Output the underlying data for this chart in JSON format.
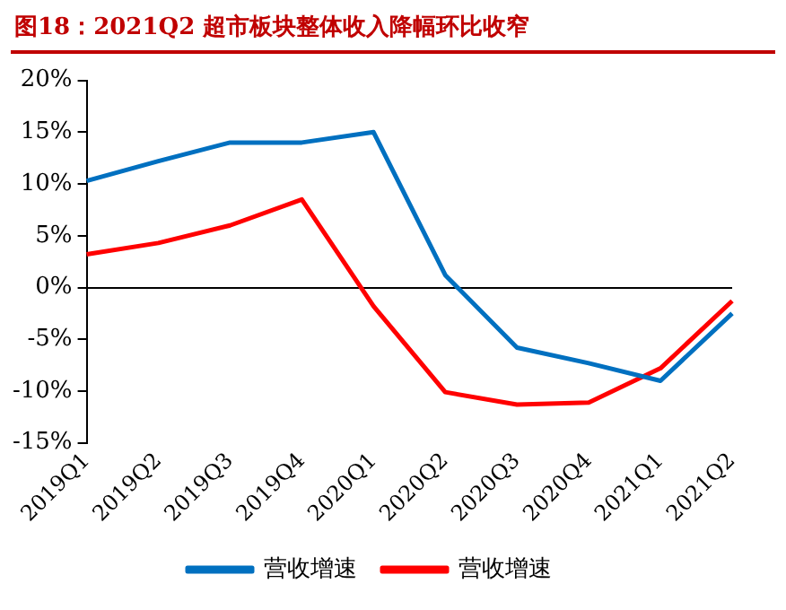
{
  "chart_data": {
    "type": "line",
    "title": "图18：2021Q2 超市板块整体收入降幅环比收窄",
    "categories": [
      "2019Q1",
      "2019Q2",
      "2019Q3",
      "2019Q4",
      "2020Q1",
      "2020Q2",
      "2020Q3",
      "2020Q4",
      "2021Q1",
      "2021Q2"
    ],
    "series": [
      {
        "name": "营收增速",
        "color": "#0070c0",
        "values": [
          10.3,
          12.2,
          14.0,
          14.0,
          15.0,
          1.2,
          -5.8,
          -7.3,
          -9.0,
          -2.5
        ]
      },
      {
        "name": "营收增速",
        "color": "#ff0000",
        "values": [
          3.2,
          4.3,
          6.0,
          8.5,
          -1.8,
          -10.1,
          -11.3,
          -11.1,
          -7.8,
          -1.3
        ]
      }
    ],
    "ylim": [
      -15,
      20
    ],
    "yticks": [
      {
        "value": -15,
        "label": "-15%"
      },
      {
        "value": -10,
        "label": "-10%"
      },
      {
        "value": -5,
        "label": "-5%"
      },
      {
        "value": 0,
        "label": "0%"
      },
      {
        "value": 5,
        "label": "5%"
      },
      {
        "value": 10,
        "label": "10%"
      },
      {
        "value": 15,
        "label": "15%"
      },
      {
        "value": 20,
        "label": "20%"
      }
    ],
    "legend": "bottom",
    "marker": "none",
    "line_style": "solid"
  }
}
